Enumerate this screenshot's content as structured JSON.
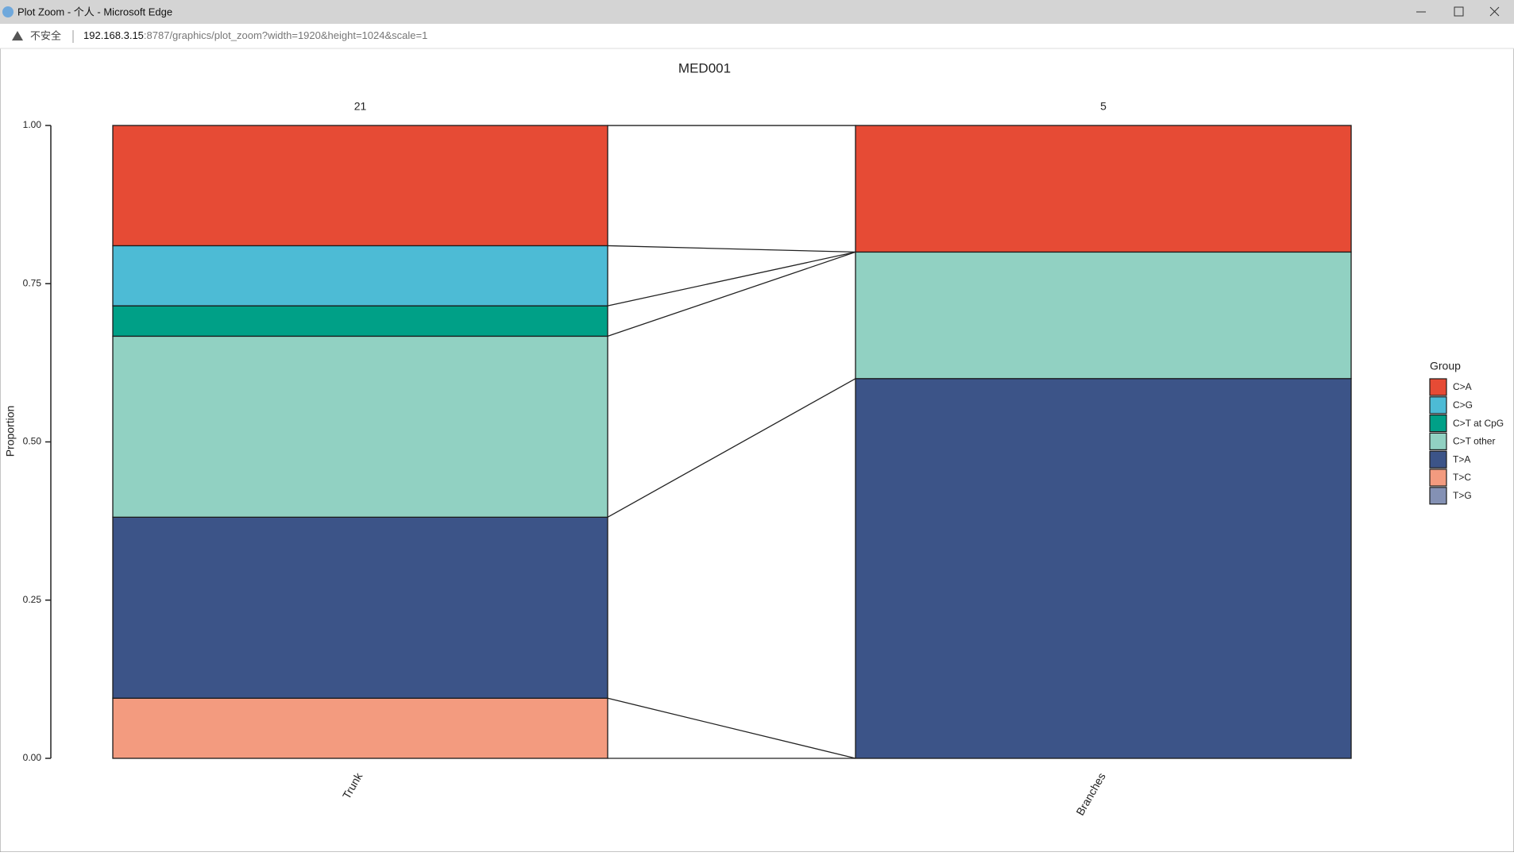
{
  "window": {
    "title": "Plot Zoom - 个人 - Microsoft Edge",
    "security_label": "不安全",
    "url_host": "192.168.3.15",
    "url_rest": ":8787/graphics/plot_zoom?width=1920&height=1024&scale=1"
  },
  "chart_data": {
    "type": "bar",
    "stacked": true,
    "title": "MED001",
    "ylabel": "Proportion",
    "categories": [
      "Trunk",
      "Branches"
    ],
    "facet_labels": [
      21,
      5
    ],
    "legend_title": "Group",
    "legend_position": "right",
    "series": [
      {
        "name": "C>A",
        "color": "#E64B35",
        "values": [
          0.19,
          0.2
        ]
      },
      {
        "name": "C>G",
        "color": "#4DBBD5",
        "values": [
          0.095,
          0
        ]
      },
      {
        "name": "C>T at CpG",
        "color": "#00A087",
        "values": [
          0.048,
          0
        ]
      },
      {
        "name": "C>T other",
        "color": "#91D1C2",
        "values": [
          0.286,
          0.2
        ]
      },
      {
        "name": "T>A",
        "color": "#3C5488",
        "values": [
          0.286,
          0.6
        ]
      },
      {
        "name": "T>C",
        "color": "#F39B7F",
        "values": [
          0.095,
          0
        ]
      },
      {
        "name": "T>G",
        "color": "#8491B4",
        "values": [
          0,
          0
        ]
      }
    ],
    "ylim": [
      0,
      1
    ],
    "yticks": [
      {
        "value": 0,
        "label": "0.00"
      },
      {
        "value": 0.25,
        "label": "0.25"
      },
      {
        "value": 0.5,
        "label": "0.50"
      },
      {
        "value": 0.75,
        "label": "0.75"
      },
      {
        "value": 1,
        "label": "1.00"
      }
    ]
  }
}
